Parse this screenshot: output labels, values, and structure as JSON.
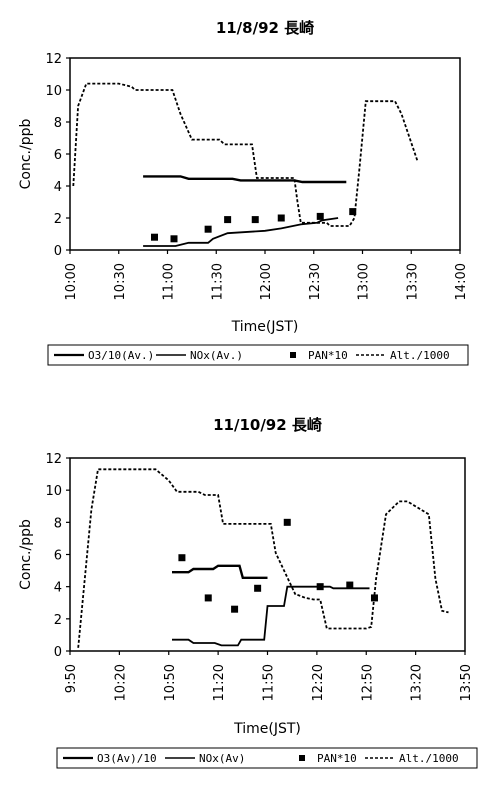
{
  "chart_data": [
    {
      "type": "line",
      "title": "11/8/92 長崎",
      "xlabel": "Time(JST)",
      "ylabel": "Conc./ppb",
      "x_unit": "minutes",
      "xlim": [
        600,
        840
      ],
      "ylim": [
        0,
        12
      ],
      "yticks": [
        0,
        2,
        4,
        6,
        8,
        10,
        12
      ],
      "xticks": [
        {
          "value": 600,
          "label": "10:00"
        },
        {
          "value": 630,
          "label": "10:30"
        },
        {
          "value": 660,
          "label": "11:00"
        },
        {
          "value": 690,
          "label": "11:30"
        },
        {
          "value": 720,
          "label": "12:00"
        },
        {
          "value": 750,
          "label": "12:30"
        },
        {
          "value": 780,
          "label": "13:00"
        },
        {
          "value": 810,
          "label": "13:30"
        },
        {
          "value": 840,
          "label": "14:00"
        }
      ],
      "legend": "bottom",
      "series": [
        {
          "name": "O3/10(Av.)",
          "style": "solid-thick",
          "x": [
            645,
            668,
            673,
            700,
            705,
            738,
            743,
            770
          ],
          "y": [
            4.6,
            4.6,
            4.45,
            4.45,
            4.35,
            4.35,
            4.25,
            4.25
          ]
        },
        {
          "name": "NOx(Av.)",
          "style": "solid",
          "x": [
            645,
            665,
            673,
            685,
            688,
            697,
            720,
            730,
            742,
            752,
            755,
            765
          ],
          "y": [
            0.25,
            0.25,
            0.45,
            0.45,
            0.7,
            1.05,
            1.2,
            1.35,
            1.6,
            1.7,
            1.85,
            2.0
          ]
        },
        {
          "name": "PAN*10",
          "style": "marker",
          "x": [
            652,
            664,
            685,
            697,
            714,
            730,
            754,
            774
          ],
          "y": [
            0.8,
            0.7,
            1.3,
            1.9,
            1.9,
            2.0,
            2.1,
            2.4
          ]
        },
        {
          "name": "Alt./1000",
          "style": "dotted",
          "x": [
            602,
            605,
            610,
            630,
            638,
            640,
            663,
            668,
            675,
            692,
            695,
            712,
            715,
            738,
            740,
            742,
            758,
            760,
            772,
            775,
            778,
            782,
            800,
            804,
            814
          ],
          "y": [
            4.0,
            9.0,
            10.4,
            10.4,
            10.2,
            10.0,
            10.0,
            8.5,
            6.9,
            6.9,
            6.6,
            6.6,
            4.5,
            4.5,
            3.0,
            1.7,
            1.7,
            1.5,
            1.5,
            2.0,
            5.0,
            9.3,
            9.3,
            8.5,
            5.5
          ]
        }
      ]
    },
    {
      "type": "line",
      "title": "11/10/92 長崎",
      "xlabel": "Time(JST)",
      "ylabel": "Conc./ppb",
      "x_unit": "minutes",
      "xlim": [
        590,
        830
      ],
      "ylim": [
        0,
        12
      ],
      "yticks": [
        0,
        2,
        4,
        6,
        8,
        10,
        12
      ],
      "xticks": [
        {
          "value": 590,
          "label": "9:50"
        },
        {
          "value": 620,
          "label": "10:20"
        },
        {
          "value": 650,
          "label": "10:50"
        },
        {
          "value": 680,
          "label": "11:20"
        },
        {
          "value": 710,
          "label": "11:50"
        },
        {
          "value": 740,
          "label": "12:20"
        },
        {
          "value": 770,
          "label": "12:50"
        },
        {
          "value": 800,
          "label": "13:20"
        },
        {
          "value": 830,
          "label": "13:50"
        }
      ],
      "legend": "bottom",
      "series": [
        {
          "name": "O3(Av)/10",
          "style": "solid-thick",
          "x": [
            652,
            662,
            665,
            677,
            680,
            693,
            695,
            710
          ],
          "y": [
            4.9,
            4.9,
            5.1,
            5.1,
            5.3,
            5.3,
            4.55,
            4.55
          ]
        },
        {
          "name": "NOx(Av)",
          "style": "solid",
          "x": [
            652,
            662,
            665,
            678,
            682,
            692,
            694,
            708,
            710,
            720,
            722,
            748,
            750,
            772
          ],
          "y": [
            0.7,
            0.7,
            0.5,
            0.5,
            0.35,
            0.35,
            0.7,
            0.7,
            2.8,
            2.8,
            4.0,
            4.0,
            3.9,
            3.9
          ]
        },
        {
          "name": "PAN*10",
          "style": "marker",
          "x": [
            658,
            674,
            690,
            704,
            722,
            742,
            760,
            775
          ],
          "y": [
            5.8,
            3.3,
            2.6,
            3.9,
            8.0,
            4.0,
            4.1,
            3.3
          ]
        },
        {
          "name": "Alt./1000",
          "style": "dotted",
          "x": [
            595,
            603,
            607,
            630,
            642,
            650,
            655,
            668,
            672,
            680,
            683,
            700,
            703,
            712,
            715,
            727,
            728,
            733,
            738,
            742,
            746,
            752,
            754,
            770,
            773,
            776,
            782,
            790,
            795,
            808,
            812,
            816,
            820
          ],
          "y": [
            0.2,
            8.8,
            11.3,
            11.3,
            11.3,
            10.6,
            9.9,
            9.9,
            9.7,
            9.7,
            7.9,
            7.9,
            7.9,
            7.9,
            6.1,
            3.5,
            3.5,
            3.3,
            3.2,
            3.2,
            1.4,
            1.4,
            1.4,
            1.4,
            1.5,
            4.5,
            8.5,
            9.3,
            9.3,
            8.5,
            4.5,
            2.5,
            2.4
          ]
        }
      ]
    }
  ]
}
